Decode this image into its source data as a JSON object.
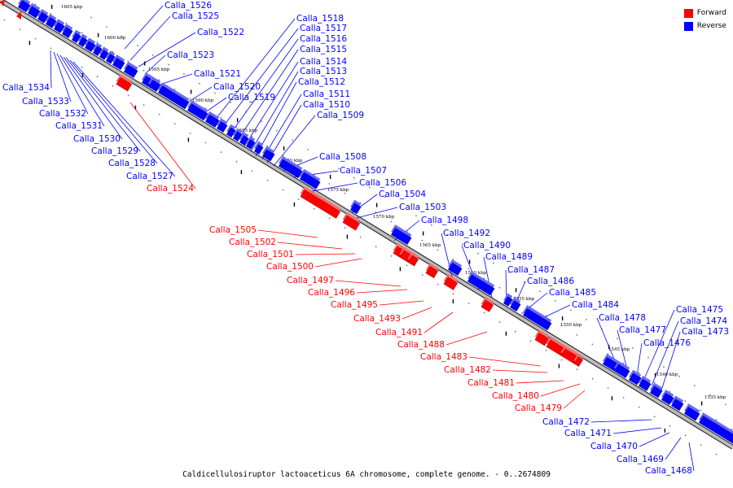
{
  "caption": "Caldicellulosiruptor lactoaceticus 6A chromosome, complete genome. - 0..2674809",
  "legend": [
    {
      "label": "Forward",
      "color": "#ff0000"
    },
    {
      "label": "Reverse",
      "color": "#0000ff"
    }
  ],
  "colors": {
    "forward": "#ff0000",
    "reverse": "#0000ff",
    "forward_light": "#ff6a6a",
    "reverse_light": "#6a6aff"
  },
  "scale_ticks": [
    "1605 kbp",
    "1600 kbp",
    "1595 kbp",
    "1590 kbp",
    "1585 kbp",
    "1580 kbp",
    "1575 kbp",
    "1570 kbp",
    "1565 kbp",
    "1560 kbp",
    "1555 kbp",
    "1550 kbp",
    "1545 kbp",
    "1540 kbp",
    "1535 kbp"
  ],
  "genes": [
    {
      "name": "Calla_1526",
      "strand": "reverse"
    },
    {
      "name": "Calla_1525",
      "strand": "reverse"
    },
    {
      "name": "Calla_1522",
      "strand": "reverse"
    },
    {
      "name": "Calla_1523",
      "strand": "reverse"
    },
    {
      "name": "Calla_1521",
      "strand": "reverse"
    },
    {
      "name": "Calla_1520",
      "strand": "reverse"
    },
    {
      "name": "Calla_1519",
      "strand": "reverse"
    },
    {
      "name": "Calla_1518",
      "strand": "reverse"
    },
    {
      "name": "Calla_1517",
      "strand": "reverse"
    },
    {
      "name": "Calla_1516",
      "strand": "reverse"
    },
    {
      "name": "Calla_1515",
      "strand": "reverse"
    },
    {
      "name": "Calla_1514",
      "strand": "reverse"
    },
    {
      "name": "Calla_1513",
      "strand": "reverse"
    },
    {
      "name": "Calla_1512",
      "strand": "reverse"
    },
    {
      "name": "Calla_1511",
      "strand": "reverse"
    },
    {
      "name": "Calla_1510",
      "strand": "reverse"
    },
    {
      "name": "Calla_1509",
      "strand": "reverse"
    },
    {
      "name": "Calla_1508",
      "strand": "reverse"
    },
    {
      "name": "Calla_1507",
      "strand": "reverse"
    },
    {
      "name": "Calla_1506",
      "strand": "reverse"
    },
    {
      "name": "Calla_1504",
      "strand": "reverse"
    },
    {
      "name": "Calla_1503",
      "strand": "reverse"
    },
    {
      "name": "Calla_1498",
      "strand": "reverse"
    },
    {
      "name": "Calla_1492",
      "strand": "reverse"
    },
    {
      "name": "Calla_1490",
      "strand": "reverse"
    },
    {
      "name": "Calla_1489",
      "strand": "reverse"
    },
    {
      "name": "Calla_1487",
      "strand": "reverse"
    },
    {
      "name": "Calla_1486",
      "strand": "reverse"
    },
    {
      "name": "Calla_1485",
      "strand": "reverse"
    },
    {
      "name": "Calla_1484",
      "strand": "reverse"
    },
    {
      "name": "Calla_1478",
      "strand": "reverse"
    },
    {
      "name": "Calla_1477",
      "strand": "reverse"
    },
    {
      "name": "Calla_1476",
      "strand": "reverse"
    },
    {
      "name": "Calla_1475",
      "strand": "reverse"
    },
    {
      "name": "Calla_1474",
      "strand": "reverse"
    },
    {
      "name": "Calla_1473",
      "strand": "reverse"
    },
    {
      "name": "Calla_1534",
      "strand": "reverse"
    },
    {
      "name": "Calla_1533",
      "strand": "reverse"
    },
    {
      "name": "Calla_1532",
      "strand": "reverse"
    },
    {
      "name": "Calla_1531",
      "strand": "reverse"
    },
    {
      "name": "Calla_1530",
      "strand": "reverse"
    },
    {
      "name": "Calla_1529",
      "strand": "reverse"
    },
    {
      "name": "Calla_1528",
      "strand": "reverse"
    },
    {
      "name": "Calla_1527",
      "strand": "reverse"
    },
    {
      "name": "Calla_1524",
      "strand": "forward"
    },
    {
      "name": "Calla_1505",
      "strand": "forward"
    },
    {
      "name": "Calla_1502",
      "strand": "forward"
    },
    {
      "name": "Calla_1501",
      "strand": "forward"
    },
    {
      "name": "Calla_1500",
      "strand": "forward"
    },
    {
      "name": "Calla_1497",
      "strand": "forward"
    },
    {
      "name": "Calla_1496",
      "strand": "forward"
    },
    {
      "name": "Calla_1495",
      "strand": "forward"
    },
    {
      "name": "Calla_1493",
      "strand": "forward"
    },
    {
      "name": "Calla_1491",
      "strand": "forward"
    },
    {
      "name": "Calla_1488",
      "strand": "forward"
    },
    {
      "name": "Calla_1483",
      "strand": "forward"
    },
    {
      "name": "Calla_1482",
      "strand": "forward"
    },
    {
      "name": "Calla_1481",
      "strand": "forward"
    },
    {
      "name": "Calla_1480",
      "strand": "forward"
    },
    {
      "name": "Calla_1479",
      "strand": "forward"
    },
    {
      "name": "Calla_1472",
      "strand": "reverse"
    },
    {
      "name": "Calla_1471",
      "strand": "reverse"
    },
    {
      "name": "Calla_1470",
      "strand": "reverse"
    },
    {
      "name": "Calla_1469",
      "strand": "reverse"
    },
    {
      "name": "Calla_1468",
      "strand": "reverse"
    }
  ]
}
